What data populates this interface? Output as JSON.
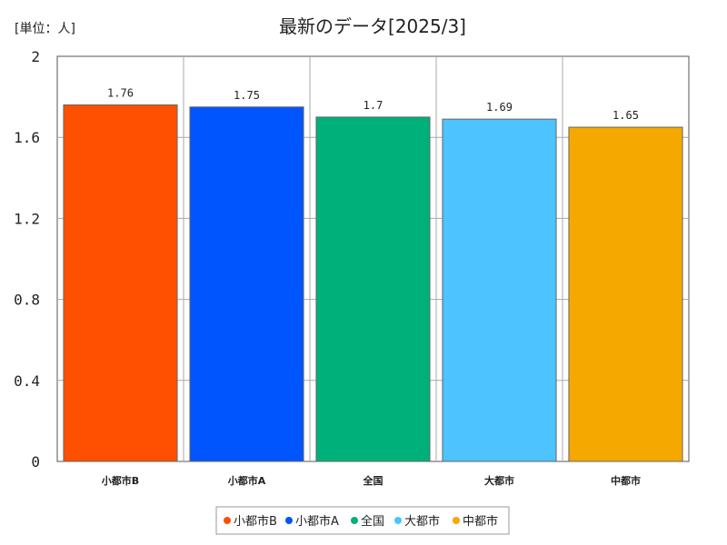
{
  "chart_data": {
    "type": "bar",
    "title": "最新のデータ[2025/3]",
    "unit_label": "[単位：人]",
    "categories": [
      "小都市B",
      "小都市A",
      "全国",
      "大都市",
      "中都市"
    ],
    "values": [
      1.76,
      1.75,
      1.7,
      1.69,
      1.65
    ],
    "value_labels": [
      "1.76",
      "1.75",
      "1.7",
      "1.69",
      "1.65"
    ],
    "colors": [
      "#ff4f00",
      "#0055ff",
      "#00b07a",
      "#4dc3ff",
      "#f5a800"
    ],
    "ylim": [
      0,
      2
    ],
    "yticks": [
      "0",
      "0.4",
      "0.8",
      "1.2",
      "1.6",
      "2"
    ],
    "grid": true,
    "legend_position": "bottom"
  }
}
